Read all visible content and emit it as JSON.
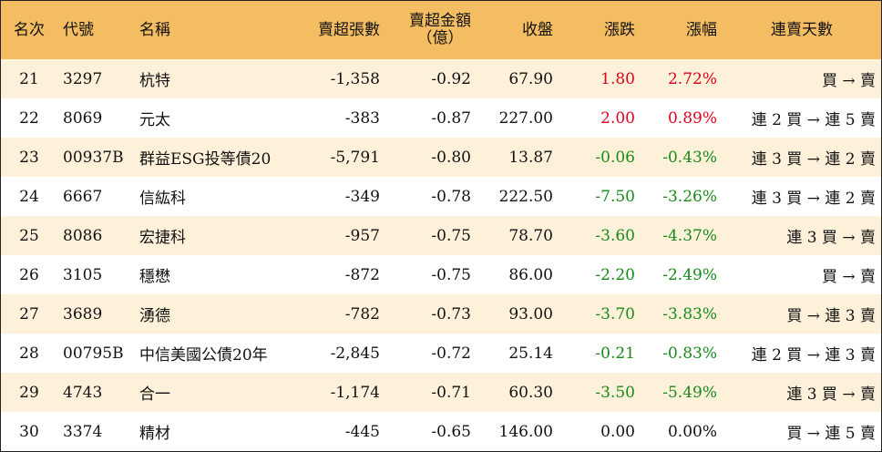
{
  "headers": {
    "rank": "名次",
    "code": "代號",
    "name": "名稱",
    "net_sell_lots": "賣超張數",
    "net_sell_amount_line1": "賣超金額",
    "net_sell_amount_line2": "（億）",
    "close": "收盤",
    "change": "漲跌",
    "change_pct": "漲幅",
    "streak": "連賣天數"
  },
  "colors": {
    "header_bg": "#f5bd62",
    "stripe_bg": "#fdf1da",
    "up": "#e0001b",
    "down": "#1a8a1a"
  },
  "rows": [
    {
      "rank": "21",
      "code": "3297",
      "name": "杭特",
      "lots": "-1,358",
      "amount": "-0.92",
      "close": "67.90",
      "change": "1.80",
      "pct": "2.72%",
      "dir": "up",
      "streak": "買 → 賣"
    },
    {
      "rank": "22",
      "code": "8069",
      "name": "元太",
      "lots": "-383",
      "amount": "-0.87",
      "close": "227.00",
      "change": "2.00",
      "pct": "0.89%",
      "dir": "up",
      "streak": "連 2 買 → 連 5 賣"
    },
    {
      "rank": "23",
      "code": "00937B",
      "name": "群益ESG投等債20",
      "lots": "-5,791",
      "amount": "-0.80",
      "close": "13.87",
      "change": "-0.06",
      "pct": "-0.43%",
      "dir": "down",
      "streak": "連 3 買 → 連 2 賣"
    },
    {
      "rank": "24",
      "code": "6667",
      "name": "信紘科",
      "lots": "-349",
      "amount": "-0.78",
      "close": "222.50",
      "change": "-7.50",
      "pct": "-3.26%",
      "dir": "down",
      "streak": "連 3 買 → 連 2 賣"
    },
    {
      "rank": "25",
      "code": "8086",
      "name": "宏捷科",
      "lots": "-957",
      "amount": "-0.75",
      "close": "78.70",
      "change": "-3.60",
      "pct": "-4.37%",
      "dir": "down",
      "streak": "連 3 買 → 賣"
    },
    {
      "rank": "26",
      "code": "3105",
      "name": "穩懋",
      "lots": "-872",
      "amount": "-0.75",
      "close": "86.00",
      "change": "-2.20",
      "pct": "-2.49%",
      "dir": "down",
      "streak": "買 → 賣"
    },
    {
      "rank": "27",
      "code": "3689",
      "name": "湧德",
      "lots": "-782",
      "amount": "-0.73",
      "close": "93.00",
      "change": "-3.70",
      "pct": "-3.83%",
      "dir": "down",
      "streak": "買 → 連 3 賣"
    },
    {
      "rank": "28",
      "code": "00795B",
      "name": "中信美國公債20年",
      "lots": "-2,845",
      "amount": "-0.72",
      "close": "25.14",
      "change": "-0.21",
      "pct": "-0.83%",
      "dir": "down",
      "streak": "連 2 買 → 連 3 賣"
    },
    {
      "rank": "29",
      "code": "4743",
      "name": "合一",
      "lots": "-1,174",
      "amount": "-0.71",
      "close": "60.30",
      "change": "-3.50",
      "pct": "-5.49%",
      "dir": "down",
      "streak": "連 3 買 → 賣"
    },
    {
      "rank": "30",
      "code": "3374",
      "name": "精材",
      "lots": "-445",
      "amount": "-0.65",
      "close": "146.00",
      "change": "0.00",
      "pct": "0.00%",
      "dir": "flat",
      "streak": "買 → 連 5 賣"
    }
  ]
}
